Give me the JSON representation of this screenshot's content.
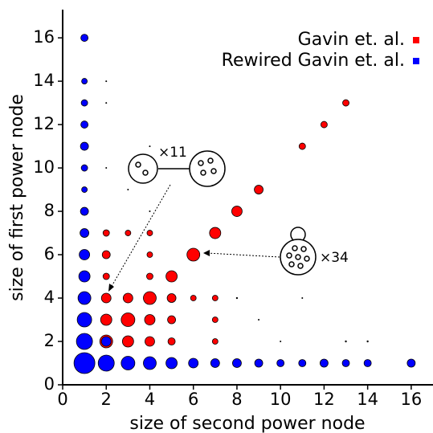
{
  "chart_data": {
    "type": "scatter",
    "xlabel": "size of second power node",
    "ylabel": "size of first power node",
    "xlim": [
      0,
      17
    ],
    "ylim": [
      0,
      17.3
    ],
    "xticks": [
      0,
      2,
      4,
      6,
      8,
      10,
      12,
      14,
      16
    ],
    "yticks": [
      0,
      2,
      4,
      6,
      8,
      10,
      12,
      14,
      16
    ],
    "legend": "upper right",
    "annotations": [
      "×11",
      "×34"
    ],
    "series": [
      {
        "name": "Gavin et. al.",
        "color": "#ff0000",
        "x": [
          2,
          3,
          4,
          2,
          4,
          2,
          4,
          5,
          2,
          3,
          4,
          5,
          6,
          7,
          2,
          3,
          4,
          5,
          7,
          2,
          3,
          4,
          5,
          7,
          6,
          7,
          8,
          9,
          11,
          12,
          13,
          8,
          11,
          9,
          10,
          13,
          14,
          2,
          2,
          2,
          4,
          3
        ],
        "values": [
          7,
          7,
          7,
          6,
          6,
          5,
          5,
          5,
          4,
          4,
          4,
          4,
          4,
          4,
          3,
          3,
          3,
          3,
          3,
          2,
          2,
          2,
          2,
          2,
          6,
          7,
          8,
          9,
          11,
          12,
          13,
          4,
          4,
          3,
          2,
          2,
          2,
          14,
          13,
          10,
          11,
          9
        ],
        "sizes": [
          4,
          3.5,
          3.5,
          5,
          3.5,
          4,
          4,
          7,
          6,
          6,
          8,
          5.5,
          3.5,
          3.5,
          7,
          8.5,
          6.5,
          5,
          3.5,
          8,
          7,
          6,
          4.5,
          3.5,
          8,
          7,
          6.5,
          5.5,
          4,
          4,
          4,
          1.2,
          1,
          1,
          1,
          1.2,
          1.2,
          1,
          1,
          1,
          1,
          1
        ]
      },
      {
        "name": "Rewired Gavin et. al.",
        "color": "#0000ff",
        "x": [
          1,
          1,
          1,
          1,
          1,
          1,
          1,
          1,
          1,
          1,
          1,
          1,
          1,
          1,
          1,
          2,
          3,
          4,
          5,
          6,
          7,
          8,
          9,
          10,
          11,
          12,
          13,
          14,
          16,
          2,
          4
        ],
        "values": [
          16,
          14,
          13,
          12,
          11,
          10,
          9,
          8,
          7,
          6,
          5,
          4,
          3,
          2,
          1,
          1,
          1,
          1,
          1,
          1,
          1,
          1,
          1,
          1,
          1,
          1,
          1,
          1,
          1,
          2,
          8
        ],
        "sizes": [
          4.5,
          3.5,
          4,
          4.5,
          5,
          4,
          3.5,
          5,
          5.5,
          6.5,
          7,
          8,
          9,
          10,
          13,
          10,
          8.5,
          8,
          7,
          6,
          5.5,
          5.5,
          5,
          4.5,
          4.5,
          5,
          4.5,
          4.5,
          5,
          6,
          1
        ]
      }
    ]
  }
}
